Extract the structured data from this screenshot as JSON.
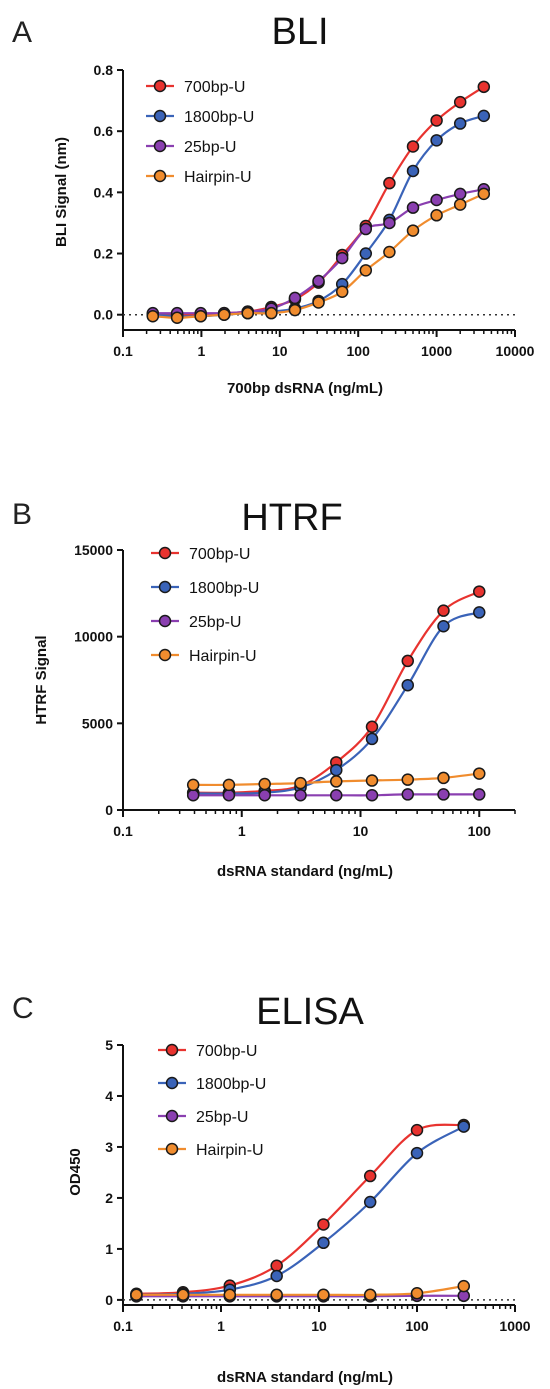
{
  "colors": {
    "700bp-U": "#e8332f",
    "1800bp-U": "#3a63b8",
    "25bp-U": "#8a3fb0",
    "Hairpin-U": "#f08c2e"
  },
  "chart_data": [
    {
      "type": "scatter",
      "panel": "A",
      "title": "BLI",
      "xlabel": "700bp dsRNA (ng/mL)",
      "ylabel": "BLI Signal (nm)",
      "xscale": "log",
      "xlim": [
        0.1,
        10000
      ],
      "ylim": [
        -0.05,
        0.8
      ],
      "xticks": [
        0.1,
        1,
        10,
        100,
        1000,
        10000
      ],
      "xtick_labels": [
        "0.1",
        "1",
        "10",
        "100",
        "1000",
        "10000"
      ],
      "yticks": [
        0.0,
        0.2,
        0.4,
        0.6,
        0.8
      ],
      "ytick_labels": [
        "0.0",
        "0.2",
        "0.4",
        "0.6",
        "0.8"
      ],
      "reference_line": 0,
      "legend_position": "top-left",
      "x": [
        0.24,
        0.49,
        0.98,
        1.95,
        3.9,
        7.8,
        15.6,
        31.2,
        62.5,
        125,
        250,
        500,
        1000,
        2000,
        4000
      ],
      "series": [
        {
          "name": "700bp-U",
          "values": [
            0.0,
            0.0,
            0.0,
            0.005,
            0.01,
            0.025,
            0.05,
            0.105,
            0.195,
            0.29,
            0.43,
            0.55,
            0.635,
            0.695,
            0.745
          ]
        },
        {
          "name": "1800bp-U",
          "values": [
            0.0,
            -0.005,
            -0.005,
            0.0,
            0.005,
            0.01,
            0.02,
            0.045,
            0.1,
            0.2,
            0.31,
            0.47,
            0.57,
            0.625,
            0.65
          ]
        },
        {
          "name": "25bp-U",
          "values": [
            0.005,
            0.005,
            0.005,
            0.005,
            0.01,
            0.02,
            0.055,
            0.11,
            0.185,
            0.28,
            0.3,
            0.35,
            0.375,
            0.395,
            0.41
          ]
        },
        {
          "name": "Hairpin-U",
          "values": [
            -0.005,
            -0.01,
            -0.005,
            0.0,
            0.005,
            0.005,
            0.015,
            0.04,
            0.075,
            0.145,
            0.205,
            0.275,
            0.325,
            0.36,
            0.395
          ]
        }
      ]
    },
    {
      "type": "scatter",
      "panel": "B",
      "title": "HTRF",
      "xlabel": "dsRNA standard (ng/mL)",
      "ylabel": "HTRF Signal",
      "xscale": "log",
      "xlim": [
        0.1,
        200
      ],
      "ylim": [
        0,
        15000
      ],
      "xticks": [
        0.1,
        1,
        10,
        100
      ],
      "xtick_labels": [
        "0.1",
        "1",
        "10",
        "100"
      ],
      "yticks": [
        0,
        5000,
        10000,
        15000
      ],
      "ytick_labels": [
        "0",
        "5000",
        "10000",
        "15000"
      ],
      "legend_position": "top-left",
      "x": [
        0.39,
        0.78,
        1.56,
        3.125,
        6.25,
        12.5,
        25,
        50,
        100
      ],
      "series": [
        {
          "name": "700bp-U",
          "values": [
            1000,
            1000,
            1100,
            1400,
            2750,
            4800,
            8600,
            11500,
            12600
          ]
        },
        {
          "name": "1800bp-U",
          "values": [
            950,
            950,
            1000,
            1300,
            2300,
            4100,
            7200,
            10600,
            11400
          ]
        },
        {
          "name": "25bp-U",
          "values": [
            850,
            850,
            850,
            850,
            850,
            850,
            900,
            900,
            900
          ]
        },
        {
          "name": "Hairpin-U",
          "values": [
            1450,
            1450,
            1500,
            1550,
            1650,
            1700,
            1750,
            1850,
            2100
          ]
        }
      ]
    },
    {
      "type": "scatter",
      "panel": "C",
      "title": "ELISA",
      "xlabel": "dsRNA standard (ng/mL)",
      "ylabel": "OD450",
      "xscale": "log",
      "xlim": [
        0.1,
        1000
      ],
      "ylim": [
        -0.1,
        5
      ],
      "xticks": [
        0.1,
        1,
        10,
        100,
        1000
      ],
      "xtick_labels": [
        "0.1",
        "1",
        "10",
        "100",
        "1000"
      ],
      "yticks": [
        0,
        1,
        2,
        3,
        4,
        5
      ],
      "ytick_labels": [
        "0",
        "1",
        "2",
        "3",
        "4",
        "5"
      ],
      "reference_line": 0,
      "legend_position": "top-left",
      "x": [
        0.137,
        0.41,
        1.23,
        3.7,
        11.1,
        33.3,
        100,
        300
      ],
      "series": [
        {
          "name": "700bp-U",
          "values": [
            0.12,
            0.15,
            0.28,
            0.67,
            1.48,
            2.43,
            3.33,
            3.43
          ]
        },
        {
          "name": "1800bp-U",
          "values": [
            0.1,
            0.12,
            0.2,
            0.47,
            1.12,
            1.92,
            2.88,
            3.4
          ]
        },
        {
          "name": "25bp-U",
          "values": [
            0.07,
            0.07,
            0.07,
            0.07,
            0.07,
            0.07,
            0.08,
            0.08
          ]
        },
        {
          "name": "Hairpin-U",
          "values": [
            0.1,
            0.1,
            0.1,
            0.1,
            0.1,
            0.1,
            0.13,
            0.27
          ]
        }
      ]
    }
  ]
}
